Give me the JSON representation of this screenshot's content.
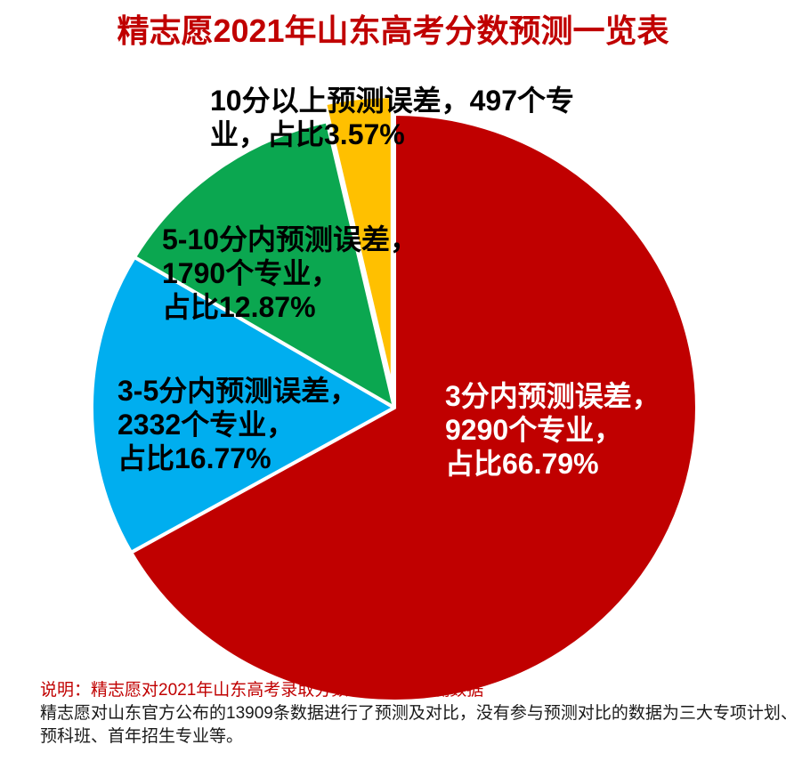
{
  "page_title": "精志愿2021年山东高考分数预测一览表",
  "chart_data": {
    "type": "pie",
    "title": "精志愿2021年山东高考分数预测一览表",
    "legend_position": "none",
    "start_angle_deg": 0,
    "direction": "clockwise",
    "total_compared_records": 13909,
    "slices": [
      {
        "id": "within-3",
        "label": "3分内预测误差",
        "specialty_count": 9290,
        "percent": 66.79,
        "color": "#C00000",
        "label_text_color": "#FFFFFF",
        "exploded": false,
        "label_lines": [
          "3分内预测误差，",
          "9290个专业，",
          "占比66.79%"
        ]
      },
      {
        "id": "3-to-5",
        "label": "3-5分内预测误差",
        "specialty_count": 2332,
        "percent": 16.77,
        "color": "#00AEEF",
        "label_text_color": "#000000",
        "exploded": false,
        "label_lines": [
          "3-5分内预测误差，",
          "2332个专业，",
          "占比16.77%"
        ]
      },
      {
        "id": "5-to-10",
        "label": "5-10分内预测误差",
        "specialty_count": 1790,
        "percent": 12.87,
        "color": "#0BA750",
        "label_text_color": "#000000",
        "exploded": false,
        "label_lines": [
          "5-10分内预测误差，",
          "1790个专业，",
          "占比12.87%"
        ]
      },
      {
        "id": "over-10",
        "label": "10分以上预测误差",
        "specialty_count": 497,
        "percent": 3.57,
        "color": "#FFC000",
        "label_text_color": "#000000",
        "exploded": true,
        "label_lines": [
          "10分以上预测误差，497个专",
          "业，占比3.57%"
        ]
      }
    ]
  },
  "notes": {
    "line1": "说明：精志愿对2021年山东高考录取分数线做出的预测数据",
    "line2": "精志愿对山东官方公布的13909条数据进行了预测及对比，没有参与预测对比的数据为三大专项计划、",
    "line3": "预科班、首年招生专业等。"
  },
  "colors": {
    "title": "#C00000",
    "note_red": "#C00000",
    "note_black": "#1A1A1A",
    "background": "#FFFFFF",
    "slice_border": "#FFFFFF"
  }
}
